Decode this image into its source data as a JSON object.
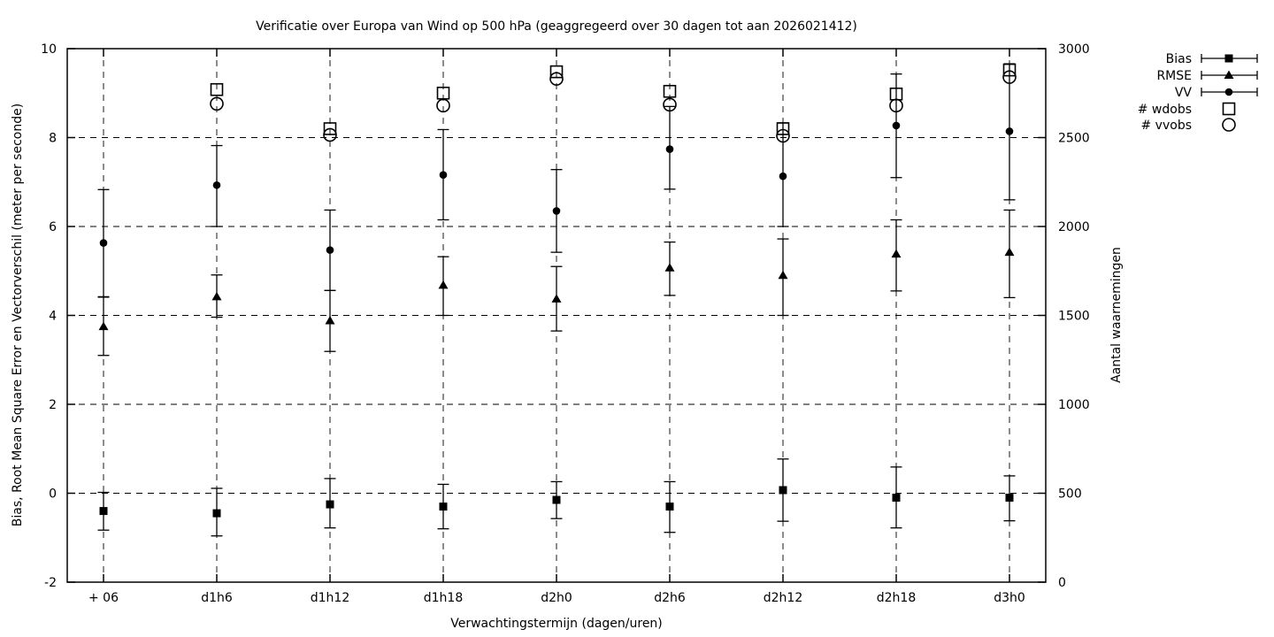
{
  "chart_data": {
    "type": "scatter",
    "title": "Verificatie over Europa van Wind op 500 hPa (geaggregeerd over 30 dagen tot aan 2026021412)",
    "xlabel": "Verwachtingstermijn (dagen/uren)",
    "ylabel_left": "Bias, Root Mean Square Error en Vectorverschil (meter per seconde)",
    "ylabel_right": "Aantal waarnemingen",
    "categories": [
      "+ 06",
      "d1h6",
      "d1h12",
      "d1h18",
      "d2h0",
      "d2h6",
      "d2h12",
      "d2h18",
      "d3h0"
    ],
    "ylim_left": [
      -2,
      10
    ],
    "yticks_left": [
      -2,
      0,
      2,
      4,
      6,
      8,
      10
    ],
    "ylim_right": [
      0,
      3000
    ],
    "yticks_right": [
      0,
      500,
      1000,
      1500,
      2000,
      2500,
      3000
    ],
    "grid": true,
    "legend_position": "outside-top-right",
    "colors": {
      "foreground": "#000000",
      "background": "#ffffff"
    },
    "series": [
      {
        "name": "Bias",
        "marker": "filled-square",
        "axis": "left",
        "errorbars": true,
        "values": [
          -0.4,
          -0.45,
          -0.25,
          -0.3,
          -0.15,
          -0.3,
          0.07,
          -0.1,
          -0.1
        ],
        "err_lo": [
          -0.83,
          -0.96,
          -0.78,
          -0.8,
          -0.57,
          -0.88,
          -0.63,
          -0.78,
          -0.62
        ],
        "err_hi": [
          0.02,
          0.11,
          0.33,
          0.2,
          0.26,
          0.26,
          0.77,
          0.59,
          0.39
        ]
      },
      {
        "name": "RMSE",
        "marker": "filled-triangle",
        "axis": "left",
        "errorbars": true,
        "values": [
          3.75,
          4.42,
          3.88,
          4.68,
          4.37,
          5.07,
          4.9,
          5.38,
          5.42
        ],
        "err_lo": [
          3.1,
          3.96,
          3.19,
          4.0,
          3.65,
          4.45,
          4.0,
          4.55,
          4.4
        ],
        "err_hi": [
          4.42,
          4.91,
          4.56,
          5.32,
          5.1,
          5.65,
          5.72,
          6.15,
          6.37
        ]
      },
      {
        "name": "VV",
        "marker": "filled-circle",
        "axis": "left",
        "errorbars": true,
        "values": [
          5.63,
          6.93,
          5.47,
          7.16,
          6.35,
          7.74,
          7.13,
          8.27,
          8.14
        ],
        "err_lo": [
          4.41,
          6.0,
          4.56,
          6.15,
          5.42,
          6.84,
          6.0,
          7.1,
          6.6
        ],
        "err_hi": [
          6.83,
          7.82,
          6.37,
          8.18,
          7.28,
          8.7,
          8.33,
          9.43,
          9.66
        ]
      },
      {
        "name": "# wdobs",
        "marker": "open-square",
        "axis": "right",
        "errorbars": false,
        "values": [
          null,
          2770,
          2550,
          2750,
          2870,
          2760,
          2550,
          2745,
          2880
        ]
      },
      {
        "name": "# vvobs",
        "marker": "open-circle",
        "axis": "right",
        "errorbars": false,
        "values": [
          null,
          2690,
          2515,
          2680,
          2830,
          2685,
          2510,
          2680,
          2840
        ]
      }
    ]
  }
}
